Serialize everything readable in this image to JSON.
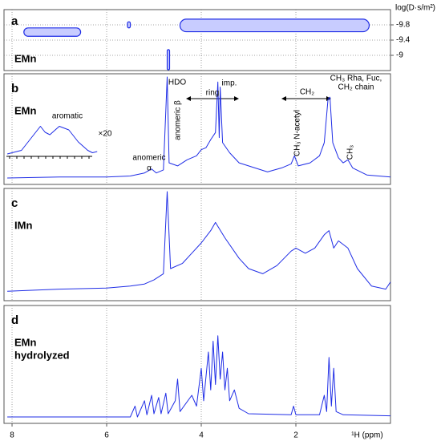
{
  "chart_data": [
    {
      "type": "dosy",
      "label": "a",
      "sample": [
        "EMn"
      ],
      "axis_label": "log(D·s/m²)",
      "xlim": [
        8.17,
        0
      ],
      "xticks": [
        8,
        6,
        4,
        2
      ],
      "ylim": [
        -10.2,
        -8.6
      ],
      "yticks": [
        -9.8,
        -9.4,
        -9.0
      ],
      "color": "#1f2de6",
      "spots": [
        {
          "x": [
            7.75,
            6.55
          ],
          "y": [
            -9.5,
            -9.72
          ]
        },
        {
          "x": [
            5.56,
            5.5
          ],
          "y": [
            -9.72,
            -9.88
          ]
        },
        {
          "x": [
            4.45,
            0.45
          ],
          "y": [
            -9.62,
            -9.95
          ]
        },
        {
          "x": [
            4.72,
            4.67
          ],
          "y": [
            -8.62,
            -9.15
          ]
        }
      ]
    },
    {
      "type": "line",
      "label": "b",
      "sample": [
        "EMn"
      ],
      "xlim": [
        8.17,
        0
      ],
      "xticks": [
        8,
        6,
        4,
        2
      ],
      "ylim": [
        0,
        100
      ],
      "color": "#1f2de6",
      "x": [
        8.1,
        7,
        6,
        5.5,
        5.2,
        5.05,
        4.95,
        4.8,
        4.72,
        4.68,
        4.5,
        4.3,
        4.1,
        4.0,
        3.9,
        3.8,
        3.7,
        3.65,
        3.62,
        3.6,
        3.55,
        3.4,
        3.2,
        3.0,
        2.6,
        2.3,
        2.1,
        2.03,
        1.95,
        1.7,
        1.5,
        1.4,
        1.32,
        1.28,
        1.22,
        1.1,
        1.0,
        0.9,
        0.8,
        0.5,
        0
      ],
      "values": [
        0,
        1,
        1,
        2,
        5,
        9,
        5,
        8,
        100,
        15,
        12,
        18,
        22,
        28,
        30,
        38,
        45,
        95,
        40,
        90,
        35,
        25,
        15,
        12,
        6,
        10,
        14,
        22,
        12,
        15,
        22,
        35,
        78,
        80,
        35,
        20,
        15,
        18,
        10,
        3,
        1
      ],
      "annotations": [
        "HDO",
        "anomeric β",
        "anomeric",
        "α",
        "ring",
        "imp.",
        "CH₂",
        "CH₃ N-acetyl",
        "CH₃ Rha, Fuc,",
        "CH₂ chain",
        "CH₃",
        "aromatic",
        "×20"
      ],
      "inset": {
        "ylim": [
          0,
          40
        ],
        "x": [
          8.1,
          7.8,
          7.6,
          7.4,
          7.3,
          7.2,
          7.0,
          6.8,
          6.6,
          6.4,
          6.3,
          6.2
        ],
        "values": [
          2,
          5,
          15,
          25,
          20,
          18,
          25,
          22,
          12,
          5,
          3,
          4
        ]
      }
    },
    {
      "type": "line",
      "label": "c",
      "sample": [
        "IMn"
      ],
      "xlim": [
        8.17,
        0
      ],
      "xticks": [
        8,
        6,
        4,
        2
      ],
      "ylim": [
        0,
        100
      ],
      "color": "#1f2de6",
      "x": [
        8.1,
        7,
        6,
        5.5,
        5.2,
        5,
        4.8,
        4.72,
        4.65,
        4.4,
        4.2,
        4.0,
        3.8,
        3.7,
        3.5,
        3.2,
        3,
        2.7,
        2.4,
        2.1,
        2.0,
        1.8,
        1.6,
        1.4,
        1.3,
        1.2,
        1.1,
        0.9,
        0.7,
        0.4,
        0.1,
        0
      ],
      "values": [
        3,
        5,
        6,
        8,
        10,
        14,
        20,
        100,
        25,
        30,
        40,
        50,
        62,
        70,
        55,
        35,
        25,
        20,
        28,
        42,
        45,
        40,
        45,
        58,
        62,
        45,
        52,
        45,
        25,
        8,
        5,
        12
      ]
    },
    {
      "type": "line",
      "label": "d",
      "sample": [
        "EMn",
        "hydrolyzed"
      ],
      "xlim": [
        8.17,
        0
      ],
      "xticks": [
        8,
        6,
        4,
        2
      ],
      "ylim": [
        0,
        100
      ],
      "color": "#1f2de6",
      "x": [
        8.1,
        5.5,
        5.4,
        5.35,
        5.2,
        5.15,
        5.05,
        5,
        4.9,
        4.85,
        4.75,
        4.7,
        4.55,
        4.5,
        4.45,
        4.2,
        4.1,
        4.0,
        3.95,
        3.85,
        3.8,
        3.75,
        3.7,
        3.65,
        3.6,
        3.55,
        3.5,
        3.45,
        3.4,
        3.3,
        3.2,
        3.0,
        2.1,
        2.05,
        2,
        1.5,
        1.4,
        1.35,
        1.3,
        1.25,
        1.2,
        1.15,
        1.0,
        0
      ],
      "values": [
        0,
        0,
        10,
        0,
        15,
        2,
        20,
        3,
        18,
        3,
        22,
        3,
        15,
        35,
        5,
        20,
        10,
        45,
        15,
        60,
        25,
        70,
        30,
        75,
        35,
        60,
        25,
        45,
        15,
        25,
        8,
        3,
        2,
        10,
        2,
        2,
        20,
        5,
        55,
        10,
        45,
        5,
        2,
        1
      ],
      "xlabel": "¹H (ppm)"
    }
  ]
}
